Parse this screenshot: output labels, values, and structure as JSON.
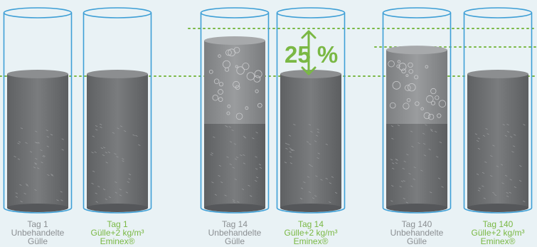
{
  "colors": {
    "background": "#e9f2f5",
    "liquid": "#6f7173",
    "foam": "#8a8b8d",
    "glass": "#3e9fd6",
    "accent": "#7ab844",
    "label_gray": "#8b8f92"
  },
  "cylinders": [
    {
      "id": "tag1-untreated",
      "day": "Tag 1",
      "line2": "Unbehandelte",
      "line3": "Gülle",
      "color": "gray",
      "foam": false,
      "relative_height": 1.0
    },
    {
      "id": "tag1-treated",
      "day": "Tag 1",
      "line2": "Gülle+2 kg/m³",
      "line3": "Eminex®",
      "color": "green",
      "foam": false,
      "relative_height": 1.0
    },
    {
      "id": "tag14-untreated",
      "day": "Tag 14",
      "line2": "Unbehandelte",
      "line3": "Gülle",
      "color": "gray",
      "foam": true,
      "relative_height": 1.25
    },
    {
      "id": "tag14-treated",
      "day": "Tag 14",
      "line2": "Gülle+2 kg/m³",
      "line3": "Eminex®",
      "color": "green",
      "foam": false,
      "relative_height": 1.0
    },
    {
      "id": "tag140-untreated",
      "day": "Tag 140",
      "line2": "Unbehandelte",
      "line3": "Gülle",
      "color": "gray",
      "foam": true,
      "relative_height": 1.18
    },
    {
      "id": "tag140-treated",
      "day": "Tag 140",
      "line2": "Gülle+2 kg/m³",
      "line3": "Eminex®",
      "color": "green",
      "foam": false,
      "relative_height": 1.0
    }
  ],
  "annotation": {
    "percent": "25 %"
  },
  "icons": [
    "double-arrow-icon"
  ]
}
